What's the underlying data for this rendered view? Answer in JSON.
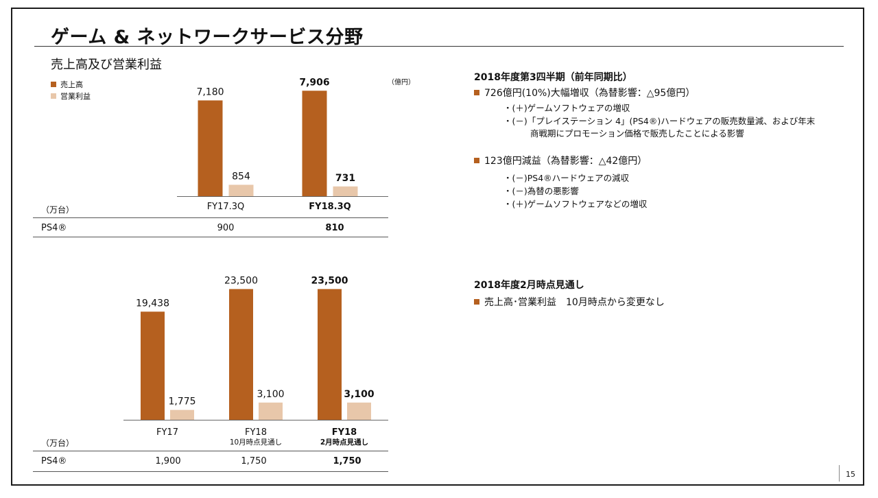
{
  "title": "ゲーム & ネットワークサービス分野",
  "subtitle": "売上高及び営業利益",
  "legend": {
    "sales": "売上高",
    "op_income": "営業利益"
  },
  "unit_label": "（億円）",
  "colors": {
    "sales": "#b5601f",
    "op_income": "#e8c7aa",
    "accent": "#b5601f"
  },
  "chart_data": [
    {
      "type": "bar",
      "categories": [
        "FY17.3Q",
        "FY18.3Q"
      ],
      "series": [
        {
          "name": "売上高",
          "values": [
            7180,
            7906
          ],
          "labels": [
            "7,180",
            "7,906"
          ]
        },
        {
          "name": "営業利益",
          "values": [
            854,
            731
          ],
          "labels": [
            "854",
            "731"
          ]
        }
      ],
      "ylim": [
        0,
        9000
      ],
      "bold_category_index": 1,
      "legend_position": "top-left"
    },
    {
      "type": "bar",
      "categories": [
        "FY17",
        "FY18",
        "FY18"
      ],
      "category_sublabels": [
        "",
        "10月時点見通し",
        "2月時点見通し"
      ],
      "series": [
        {
          "name": "売上高",
          "values": [
            19438,
            23500,
            23500
          ],
          "labels": [
            "19,438",
            "23,500",
            "23,500"
          ]
        },
        {
          "name": "営業利益",
          "values": [
            1775,
            3100,
            3100
          ],
          "labels": [
            "1,775",
            "3,100",
            "3,100"
          ]
        }
      ],
      "ylim": [
        0,
        27000
      ],
      "bold_category_index": 2
    }
  ],
  "table1": {
    "unit": "（万台）",
    "row_label": "PS4®",
    "values": [
      "900",
      "810"
    ]
  },
  "table2": {
    "unit": "（万台）",
    "row_label": "PS4®",
    "values": [
      "1,900",
      "1,750",
      "1,750"
    ]
  },
  "right": {
    "section1": {
      "heading": "2018年度第3四半期（前年同期比）",
      "bullets": [
        {
          "text": "726億円(10%)大幅増収（為替影響：△95億円）",
          "subpoints": [
            "・(＋)ゲームソフトウェアの増収",
            "・(－)「プレイステーション 4」(PS4®)ハードウェアの販売数量減、および年末",
            "商戦期にプロモーション価格で販売したことによる影響"
          ]
        },
        {
          "text": "123億円減益（為替影響：△42億円）",
          "subpoints": [
            "・(－)PS4®ハードウェアの減収",
            "・(－)為替の悪影響",
            "・(＋)ゲームソフトウェアなどの増収"
          ]
        }
      ]
    },
    "section2": {
      "heading": "2018年度2月時点見通し",
      "bullet": "売上高･営業利益　10月時点から変更なし"
    }
  },
  "page_number": "15"
}
